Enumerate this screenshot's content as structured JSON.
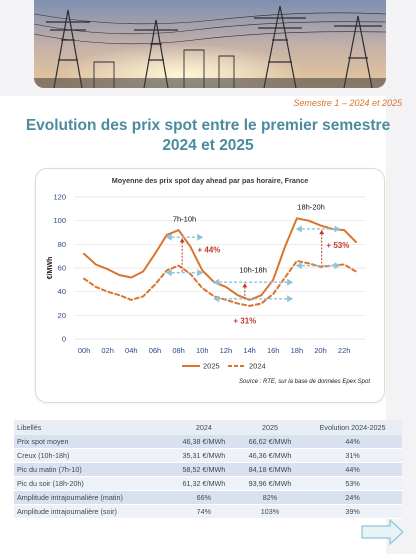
{
  "header": {
    "period": "Semestre 1 – 2024 et 2025",
    "title": "Evolution des prix spot entre le premier semestre 2024 et 2025"
  },
  "chart_data": {
    "type": "line",
    "title": "Moyenne des prix spot day ahead par pas horaire, France",
    "ylabel": "€/MWh",
    "xlabel": "",
    "x": [
      "00h",
      "01h",
      "02h",
      "03h",
      "04h",
      "05h",
      "06h",
      "07h",
      "08h",
      "09h",
      "10h",
      "11h",
      "12h",
      "13h",
      "14h",
      "15h",
      "16h",
      "17h",
      "18h",
      "19h",
      "20h",
      "21h",
      "22h",
      "23h"
    ],
    "x_tick_labels": [
      "00h",
      "02h",
      "04h",
      "06h",
      "08h",
      "10h",
      "12h",
      "14h",
      "16h",
      "18h",
      "20h",
      "22h"
    ],
    "ylim": [
      0,
      120
    ],
    "yticks": [
      0,
      20,
      40,
      60,
      80,
      100,
      120
    ],
    "grid": true,
    "legend": "bottom",
    "series": [
      {
        "name": "2025",
        "color": "#d9752e",
        "style": "solid",
        "values": [
          72,
          63,
          59,
          54,
          52,
          57,
          72,
          88,
          92,
          78,
          58,
          48,
          44,
          37,
          33,
          37,
          50,
          78,
          102,
          100,
          96,
          93,
          92,
          82
        ]
      },
      {
        "name": "2024",
        "color": "#d9752e",
        "style": "dashed",
        "values": [
          51,
          44,
          40,
          37,
          33,
          36,
          46,
          58,
          62,
          55,
          43,
          36,
          33,
          30,
          28,
          30,
          38,
          52,
          66,
          64,
          61,
          62,
          63,
          57
        ]
      }
    ],
    "annotations": [
      {
        "text": "7h-10h"
      },
      {
        "text": "+ 44%"
      },
      {
        "text": "10h-18h"
      },
      {
        "text": "+ 31%"
      },
      {
        "text": "18h-20h"
      },
      {
        "text": "+ 53%"
      }
    ],
    "source": "Source : RTE, sur la base de données Epex Spot"
  },
  "table": {
    "columns": [
      "Libellés",
      "2024",
      "2025",
      "Evolution 2024-2025"
    ],
    "rows": [
      [
        "Prix spot moyen",
        "46,38 €/MWh",
        "66,62 €/MWh",
        "44%"
      ],
      [
        "Creux (10h-18h)",
        "35,31 €/MWh",
        "46,36 €/MWh",
        "31%"
      ],
      [
        "Pic du matin (7h-10)",
        "58,52 €/MWh",
        "84,18 €/MWh",
        "44%"
      ],
      [
        "Pic du soir (18h-20h)",
        "61,32 €/MWh",
        "93,96 €/MWh",
        "53%"
      ],
      [
        "Amplitude intrajournalière (matin)",
        "66%",
        "82%",
        "24%"
      ],
      [
        "Amplitude intrajournalière (soir)",
        "74%",
        "103%",
        "39%"
      ]
    ]
  },
  "colors": {
    "accent": "#d9752e",
    "title": "#4a8c9e",
    "arrow": "#8fc3da",
    "marker": "#c0392b"
  }
}
